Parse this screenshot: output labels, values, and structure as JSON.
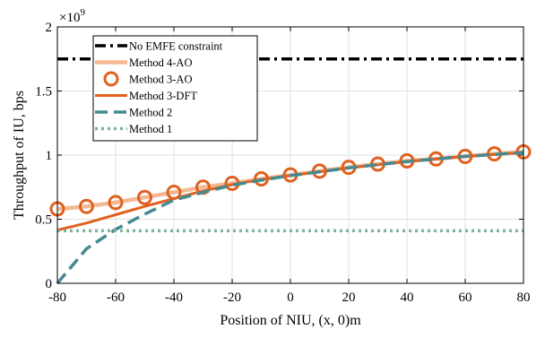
{
  "chart_data": {
    "type": "line",
    "xlabel": "Position of NIU, (x, 0)m",
    "ylabel": "Throughput of IU, bps",
    "y_exponent_label": "×10",
    "y_exponent_power": "9",
    "xlim": [
      -80,
      80
    ],
    "ylim": [
      0,
      2
    ],
    "x_ticks": [
      -80,
      -60,
      -40,
      -20,
      0,
      20,
      40,
      60,
      80
    ],
    "x_tick_labels": [
      "-80",
      "-60",
      "-40",
      "-20",
      "0",
      "20",
      "40",
      "60",
      "80"
    ],
    "y_ticks": [
      0,
      0.5,
      1,
      1.5,
      2
    ],
    "y_tick_labels": [
      "0",
      "0.5",
      "1",
      "1.5",
      "2"
    ],
    "grid": true,
    "legend_position": "top-left",
    "x": [
      -80,
      -70,
      -60,
      -50,
      -40,
      -30,
      -20,
      -10,
      0,
      10,
      20,
      30,
      40,
      50,
      60,
      70,
      80
    ],
    "series": [
      {
        "name": "No EMFE constraint",
        "color": "#000000",
        "style": "dashdot",
        "values": [
          1.75,
          1.75,
          1.75,
          1.75,
          1.75,
          1.75,
          1.75,
          1.75,
          1.75,
          1.75,
          1.75,
          1.75,
          1.75,
          1.75,
          1.75,
          1.75,
          1.75
        ]
      },
      {
        "name": "Method 4-AO",
        "color": "#f5b894",
        "style": "solid-thick",
        "values": [
          0.58,
          0.6,
          0.63,
          0.67,
          0.71,
          0.75,
          0.78,
          0.815,
          0.845,
          0.875,
          0.905,
          0.93,
          0.955,
          0.97,
          0.99,
          1.01,
          1.025
        ]
      },
      {
        "name": "Method 3-AO",
        "color": "#e0611f",
        "style": "markers-circle",
        "values": [
          0.58,
          0.6,
          0.63,
          0.67,
          0.71,
          0.75,
          0.78,
          0.815,
          0.845,
          0.875,
          0.905,
          0.93,
          0.955,
          0.97,
          0.99,
          1.01,
          1.025
        ]
      },
      {
        "name": "Method 3-DFT",
        "color": "#e0611f",
        "style": "solid",
        "values": [
          0.415,
          0.47,
          0.535,
          0.6,
          0.66,
          0.72,
          0.77,
          0.81,
          0.84,
          0.87,
          0.9,
          0.925,
          0.95,
          0.97,
          0.99,
          1.005,
          1.02
        ]
      },
      {
        "name": "Method 2",
        "color": "#458a90",
        "style": "dashed",
        "values": [
          0.0,
          0.27,
          0.42,
          0.54,
          0.65,
          0.71,
          0.765,
          0.805,
          0.84,
          0.87,
          0.9,
          0.925,
          0.95,
          0.97,
          0.99,
          1.005,
          1.02
        ]
      },
      {
        "name": "Method 1",
        "color": "#7fb59a",
        "style": "dotted",
        "values": [
          0.41,
          0.41,
          0.41,
          0.41,
          0.41,
          0.41,
          0.41,
          0.41,
          0.41,
          0.41,
          0.41,
          0.41,
          0.41,
          0.41,
          0.41,
          0.41,
          0.41
        ]
      }
    ]
  }
}
